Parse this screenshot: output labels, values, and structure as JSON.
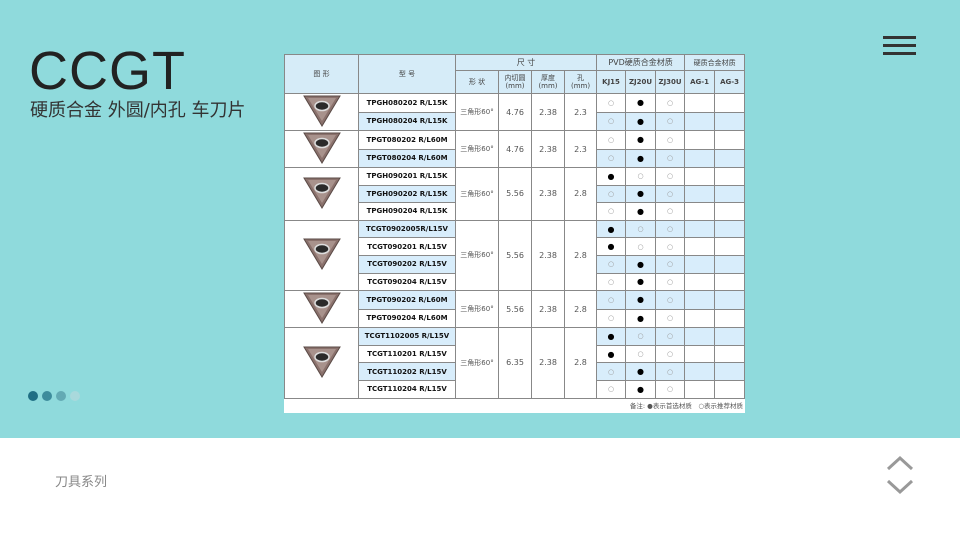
{
  "header": {
    "title": "CCGT",
    "subtitle": "硬质合金 外圆/内孔 车刀片"
  },
  "menu_icon": "hamburger-icon",
  "pagination": {
    "dots": 4,
    "active": 0,
    "colors": [
      "#1f6f84",
      "#3e8c9c",
      "#63aab4",
      "#a9d9dc"
    ]
  },
  "footer": {
    "label": "刀具系列"
  },
  "nav": {
    "up_icon": "chevron-up-icon",
    "down_icon": "chevron-down-icon"
  },
  "colors": {
    "top_bg": "#8fdadc",
    "row_blue": "#d8edfb"
  },
  "table": {
    "h_figure": "图 形",
    "h_model": "型 号",
    "h_size": "尺 寸",
    "h_pvd": "PVD硬质合金材质",
    "h_carbide": "硬质合金材质",
    "h_shape": "形 状",
    "h_ic": "内切圆\n(mm)",
    "h_thick": "厚度\n(mm)",
    "h_hole": "孔\n(mm)",
    "grades": [
      "KJ15",
      "ZJ20U",
      "ZJ30U",
      "AG-1",
      "AG-3"
    ],
    "groups": [
      {
        "shape": "三角形60°",
        "ic": "4.76",
        "thick": "2.38",
        "hole": "2.3",
        "rows": [
          {
            "model": "TPGH080202 R/L15K",
            "blue": false,
            "m": [
              "o",
              "f",
              "o",
              "",
              ""
            ]
          },
          {
            "model": "TPGH080204 R/L15K",
            "blue": true,
            "m": [
              "o",
              "f",
              "o",
              "",
              ""
            ]
          }
        ]
      },
      {
        "shape": "三角形60°",
        "ic": "4.76",
        "thick": "2.38",
        "hole": "2.3",
        "rows": [
          {
            "model": "TPGT080202 R/L60M",
            "blue": false,
            "m": [
              "o",
              "f",
              "o",
              "",
              ""
            ]
          },
          {
            "model": "TPGT080204 R/L60M",
            "blue": true,
            "m": [
              "o",
              "f",
              "o",
              "",
              ""
            ]
          }
        ]
      },
      {
        "shape": "三角形60°",
        "ic": "5.56",
        "thick": "2.38",
        "hole": "2.8",
        "rows": [
          {
            "model": "TPGH090201 R/L15K",
            "blue": false,
            "m": [
              "f",
              "o",
              "o",
              "",
              ""
            ]
          },
          {
            "model": "TPGH090202 R/L15K",
            "blue": true,
            "m": [
              "o",
              "f",
              "o",
              "",
              ""
            ]
          },
          {
            "model": "TPGH090204 R/L15K",
            "blue": false,
            "m": [
              "o",
              "f",
              "o",
              "",
              ""
            ]
          }
        ]
      },
      {
        "shape": "三角形60°",
        "ic": "5.56",
        "thick": "2.38",
        "hole": "2.8",
        "rows": [
          {
            "model": "TCGT0902005R/L15V",
            "blue": true,
            "m": [
              "f",
              "o",
              "o",
              "",
              ""
            ]
          },
          {
            "model": "TCGT090201 R/L15V",
            "blue": false,
            "m": [
              "f",
              "o",
              "o",
              "",
              ""
            ]
          },
          {
            "model": "TCGT090202 R/L15V",
            "blue": true,
            "m": [
              "o",
              "f",
              "o",
              "",
              ""
            ]
          },
          {
            "model": "TCGT090204 R/L15V",
            "blue": false,
            "m": [
              "o",
              "f",
              "o",
              "",
              ""
            ]
          }
        ]
      },
      {
        "shape": "三角形60°",
        "ic": "5.56",
        "thick": "2.38",
        "hole": "2.8",
        "rows": [
          {
            "model": "TPGT090202 R/L60M",
            "blue": true,
            "m": [
              "o",
              "f",
              "o",
              "",
              ""
            ]
          },
          {
            "model": "TPGT090204 R/L60M",
            "blue": false,
            "m": [
              "o",
              "f",
              "o",
              "",
              ""
            ]
          }
        ]
      },
      {
        "shape": "三角形60°",
        "ic": "6.35",
        "thick": "2.38",
        "hole": "2.8",
        "rows": [
          {
            "model": "TCGT1102005 R/L15V",
            "blue": true,
            "m": [
              "f",
              "o",
              "o",
              "",
              ""
            ]
          },
          {
            "model": "TCGT110201 R/L15V",
            "blue": false,
            "m": [
              "f",
              "o",
              "o",
              "",
              ""
            ]
          },
          {
            "model": "TCGT110202 R/L15V",
            "blue": true,
            "m": [
              "o",
              "f",
              "o",
              "",
              ""
            ]
          },
          {
            "model": "TCGT110204 R/L15V",
            "blue": false,
            "m": [
              "o",
              "f",
              "o",
              "",
              ""
            ]
          }
        ]
      }
    ],
    "note": "备注: ●表示首选材质　○表示推荐材质"
  }
}
